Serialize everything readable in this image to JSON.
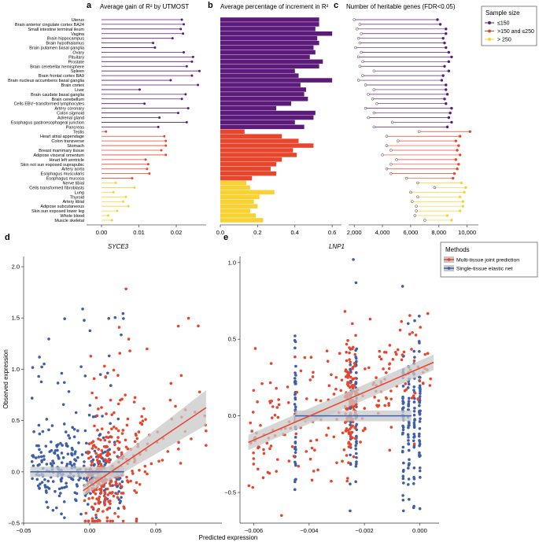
{
  "colors": {
    "purple": "#5c1a7a",
    "red": "#e8462c",
    "yellow": "#f7d232",
    "red_line": "#e8432a",
    "blue": "#3e5fa8",
    "band": "#c8c8c8"
  },
  "panels": {
    "a": {
      "letter": "a",
      "title": "Average gain of R² by UTMOST"
    },
    "b": {
      "letter": "b",
      "title": "Average percentage of increment in R²"
    },
    "c": {
      "letter": "c",
      "title": "Number of heritable genes (FDR<0.05)"
    },
    "d": {
      "letter": "d",
      "title": "SYCE3",
      "xlabel": "Predicted expression",
      "ylabel": "Observed expression"
    },
    "e": {
      "letter": "e",
      "title": "LNP1"
    }
  },
  "legend_c": {
    "title": "Sample size",
    "items": [
      {
        "label": "≤150",
        "color": "#5c1a7a"
      },
      {
        "label": ">150 and ≤250",
        "color": "#e8462c"
      },
      {
        "label": "> 250",
        "color": "#f7d232"
      }
    ]
  },
  "legend_e": {
    "title": "Methods",
    "items": [
      {
        "label": "Multi-tissue joint prediction",
        "color": "#e8432a"
      },
      {
        "label": "Single-tissue elastic net",
        "color": "#3e5fa8"
      }
    ]
  },
  "chart_data": [
    {
      "id": "a",
      "type": "lollipop",
      "title": "Average gain of R² by UTMOST",
      "categories": [
        "Uterus",
        "Brain anterior cingulate cortex BA24",
        "Small intestine terminal ileum",
        "Vagina",
        "Brain hippocampus",
        "Brain hypothalamus",
        "Brain putamen basal ganglia",
        "Ovary",
        "Pituitary",
        "Prostate",
        "Brain cerebellar hemisphere",
        "Spleen",
        "Brain frontal cortex BA9",
        "Brain nucleus accumbens basal ganglia",
        "Brain cortex",
        "Liver",
        "Brain caudate basal ganglia",
        "Brain cerebellum",
        "Cells EBV−transformed lymphocytes",
        "Artery coronary",
        "Colon sigmoid",
        "Adrenal gland",
        "Esophagus gastroesophageal junction",
        "Pancreas",
        "Testis",
        "Heart atrial appendage",
        "Colon transverse",
        "Stomach",
        "Breast mammary tissue",
        "Adipose visceral omentum",
        "Heart left ventricle",
        "Skin not sun exposed suprapubic",
        "Artery aorta",
        "Esophagus muscularis",
        "Esophagus mucosa",
        "Nerve tibial",
        "Cells transformed fibroblasts",
        "Lung",
        "Thyroid",
        "Artery tibial",
        "Adipose subcutaneous",
        "Skin sun exposed lower leg",
        "Whole blood",
        "Muscle skeletal"
      ],
      "groups": [
        "p",
        "p",
        "p",
        "p",
        "p",
        "p",
        "p",
        "p",
        "p",
        "p",
        "p",
        "p",
        "p",
        "p",
        "p",
        "p",
        "p",
        "p",
        "p",
        "p",
        "p",
        "p",
        "p",
        "p",
        "r",
        "r",
        "r",
        "r",
        "r",
        "r",
        "r",
        "r",
        "r",
        "r",
        "r",
        "y",
        "y",
        "y",
        "y",
        "y",
        "y",
        "y",
        "y",
        "y"
      ],
      "values": [
        0.0215,
        0.022,
        0.0212,
        0.0218,
        0.019,
        0.0138,
        0.0143,
        0.022,
        0.0245,
        0.0242,
        0.0228,
        0.0262,
        0.0242,
        0.0185,
        0.0258,
        0.0102,
        0.0225,
        0.0215,
        0.0115,
        0.0232,
        0.0205,
        0.0155,
        0.0228,
        0.0152,
        0.0012,
        0.0168,
        0.0172,
        0.0172,
        0.016,
        0.0172,
        0.0118,
        0.0125,
        0.0122,
        0.0128,
        0.0082,
        0.0038,
        0.0088,
        0.0032,
        0.0065,
        0.0058,
        0.0072,
        0.0042,
        0.0018,
        0.0028
      ],
      "xticks": [
        "0.00",
        "0.01",
        "0.02"
      ],
      "xlim": [
        -0.004,
        0.028
      ]
    },
    {
      "id": "b",
      "type": "bar",
      "title": "Average percentage of increment in R²",
      "values": [
        0.53,
        0.53,
        0.51,
        0.6,
        0.52,
        0.53,
        0.5,
        0.51,
        0.48,
        0.55,
        0.53,
        0.4,
        0.42,
        0.6,
        0.43,
        0.46,
        0.45,
        0.47,
        0.38,
        0.3,
        0.51,
        0.5,
        0.4,
        0.45,
        0.13,
        0.33,
        0.42,
        0.5,
        0.39,
        0.41,
        0.33,
        0.3,
        0.27,
        0.3,
        0.17,
        0.14,
        0.16,
        0.29,
        0.21,
        0.18,
        0.2,
        0.16,
        0.19,
        0.23
      ],
      "xticks": [
        "0.0",
        "0.2",
        "0.4",
        "0.6"
      ],
      "xlim": [
        0,
        0.65
      ]
    },
    {
      "id": "c",
      "type": "dumbbell",
      "title": "Number of heritable genes (FDR<0.05)",
      "start": [
        2000,
        2400,
        2200,
        2500,
        2300,
        2400,
        2100,
        2500,
        2300,
        2600,
        2400,
        3400,
        2600,
        2300,
        2800,
        3400,
        3000,
        3300,
        3600,
        2800,
        3400,
        3000,
        4700,
        3400,
        6600,
        4300,
        5100,
        4300,
        4600,
        4000,
        5000,
        4600,
        4300,
        4600,
        5700,
        6500,
        7700,
        6000,
        6500,
        6100,
        6400,
        6400,
        6300,
        7000
      ],
      "end": [
        7900,
        8100,
        8500,
        8500,
        8300,
        8400,
        8500,
        8700,
        8900,
        8700,
        8400,
        8700,
        8300,
        8200,
        8500,
        8500,
        8600,
        8400,
        8500,
        8900,
        8800,
        8700,
        8900,
        8600,
        10200,
        9500,
        9200,
        9400,
        9300,
        9500,
        9200,
        9400,
        9300,
        9100,
        9000,
        9600,
        9900,
        9800,
        9500,
        9700,
        9700,
        9500,
        8600,
        8900
      ],
      "xticks": [
        "2,000",
        "4,000",
        "6,000",
        "8,000",
        "10,000"
      ],
      "xlim": [
        1600,
        10800
      ]
    },
    {
      "id": "d",
      "type": "scatter",
      "title": "SYCE3",
      "xlabel": "Predicted expression",
      "ylabel": "Observed expression",
      "xlim": [
        -0.05,
        0.1
      ],
      "ylim": [
        -0.5,
        2.1
      ],
      "xticks": [
        "−0.05",
        "0.00",
        "0.05"
      ],
      "yticks": [
        "−0.5",
        "0.0",
        "0.5",
        "1.0",
        "1.5",
        "2.0"
      ],
      "series": [
        {
          "name": "Multi-tissue joint prediction",
          "fit": {
            "slope": 8.7,
            "intercept": -0.14,
            "xrange": [
              -0.005,
              0.088
            ]
          }
        },
        {
          "name": "Single-tissue elastic net",
          "fit": {
            "slope": 0.0,
            "intercept": 0.0,
            "xrange": [
              -0.045,
              0.026
            ]
          }
        }
      ]
    },
    {
      "id": "e",
      "type": "scatter",
      "title": "LNP1",
      "xlim": [
        -0.0065,
        0.0007
      ],
      "ylim": [
        -0.7,
        1.04
      ],
      "xticks": [
        "−0.006",
        "−0.004",
        "−0.002",
        "0.000"
      ],
      "yticks": [
        "−0.5",
        "0.0",
        "0.5",
        "1.0"
      ],
      "series": [
        {
          "name": "Multi-tissue joint prediction",
          "fit": {
            "slope": 78,
            "intercept": 0.31,
            "xrange": [
              -0.0062,
              0.0005
            ]
          }
        },
        {
          "name": "Single-tissue elastic net",
          "fit": {
            "slope": 0.0,
            "intercept": 0.0,
            "xrange": [
              -0.0045,
              -0.0003
            ]
          }
        }
      ]
    }
  ]
}
